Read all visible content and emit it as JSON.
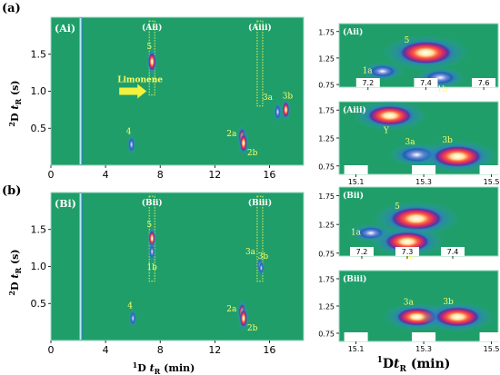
{
  "panel_labels": [
    "(a)",
    "(b)"
  ],
  "colors": {
    "background": "#1f9e6a",
    "frame": "#9fd9c0",
    "annotation": "#ffff66",
    "dotted_box": "#e9f25a"
  },
  "chart_data": [
    {
      "id": "Ai",
      "type": "heatmap",
      "label": "(Ai)",
      "xlabel": "",
      "ylabel": "2D tR (s)",
      "xlim": [
        0,
        18.5
      ],
      "ylim": [
        0,
        2.0
      ],
      "xticks": [
        0,
        4,
        8,
        12,
        16
      ],
      "yticks": [
        0.5,
        1.0,
        1.5
      ],
      "ytick_labels": [
        "0.5",
        "1.0",
        "1.5"
      ],
      "boxes": [
        {
          "name": "Aii",
          "label": "(Aii)",
          "x": [
            7.2,
            7.6
          ],
          "y": [
            0.95,
            1.95
          ]
        },
        {
          "name": "Aiii",
          "label": "(Aiii)",
          "x": [
            15.1,
            15.5
          ],
          "y": [
            0.8,
            1.95
          ]
        }
      ],
      "arrow": {
        "label": "Limonene",
        "x": 7.0,
        "y": 1.0
      },
      "spots": [
        {
          "label": "5",
          "x": 7.4,
          "y": 1.4,
          "intensity": 1.0
        },
        {
          "label": "4",
          "x": 5.9,
          "y": 0.28,
          "intensity": 0.5
        },
        {
          "label": "2a",
          "x": 14.0,
          "y": 0.38,
          "intensity": 0.8
        },
        {
          "label": "2b",
          "x": 14.1,
          "y": 0.3,
          "intensity": 0.9
        },
        {
          "label": "3a",
          "x": 16.6,
          "y": 0.72,
          "intensity": 0.5
        },
        {
          "label": "3b",
          "x": 17.2,
          "y": 0.75,
          "intensity": 0.7
        }
      ]
    },
    {
      "id": "Aii",
      "type": "heatmap",
      "label": "(Aii)",
      "xlim": [
        7.1,
        7.65
      ],
      "ylim": [
        0.7,
        1.9
      ],
      "xticks": [
        7.2,
        7.4,
        7.6
      ],
      "yticks": [
        0.75,
        1.25,
        1.75
      ],
      "ytick_labels": [
        "0.75",
        "1.25",
        "1.75"
      ],
      "spots": [
        {
          "label": "5",
          "x": 7.4,
          "y": 1.35,
          "intensity": 1.0
        },
        {
          "label": "1a",
          "x": 7.25,
          "y": 1.0,
          "intensity": 0.3
        },
        {
          "label": "1b",
          "x": 7.45,
          "y": 0.88,
          "intensity": 0.4
        }
      ]
    },
    {
      "id": "Aiii",
      "type": "heatmap",
      "label": "(Aiii)",
      "xlim": [
        15.05,
        15.52
      ],
      "ylim": [
        0.6,
        1.9
      ],
      "xticks": [
        15.1,
        15.3,
        15.5
      ],
      "yticks": [
        0.75,
        1.25,
        1.75
      ],
      "ytick_labels": [
        "0.75",
        "1.25",
        "1.75"
      ],
      "spots": [
        {
          "label": "Y",
          "x": 15.2,
          "y": 1.65,
          "intensity": 0.8
        },
        {
          "label": "3a",
          "x": 15.28,
          "y": 0.95,
          "intensity": 0.5
        },
        {
          "label": "3b",
          "x": 15.4,
          "y": 0.92,
          "intensity": 0.9
        }
      ]
    },
    {
      "id": "Bi",
      "type": "heatmap",
      "label": "(Bi)",
      "xlabel": "1D tR (min)",
      "ylabel": "2D tR (s)",
      "xlim": [
        0,
        18.5
      ],
      "ylim": [
        0,
        2.0
      ],
      "xticks": [
        0,
        4,
        8,
        12,
        16
      ],
      "yticks": [
        0.5,
        1.0,
        1.5
      ],
      "ytick_labels": [
        "0.5",
        "1.0",
        "1.5"
      ],
      "boxes": [
        {
          "name": "Bii",
          "label": "(Bii)",
          "x": [
            7.2,
            7.6
          ],
          "y": [
            0.8,
            1.95
          ]
        },
        {
          "name": "Biii",
          "label": "(Biii)",
          "x": [
            15.1,
            15.5
          ],
          "y": [
            0.8,
            1.95
          ]
        }
      ],
      "spots": [
        {
          "label": "5",
          "x": 7.4,
          "y": 1.38,
          "intensity": 0.7
        },
        {
          "label": "1b",
          "x": 7.4,
          "y": 1.2,
          "intensity": 0.4
        },
        {
          "label": "4",
          "x": 6.0,
          "y": 0.3,
          "intensity": 0.4
        },
        {
          "label": "2a",
          "x": 14.0,
          "y": 0.38,
          "intensity": 0.8
        },
        {
          "label": "2b",
          "x": 14.1,
          "y": 0.3,
          "intensity": 0.9
        },
        {
          "label": "3a",
          "x": 15.3,
          "y": 1.02,
          "intensity": 0.2
        },
        {
          "label": "3b",
          "x": 15.4,
          "y": 0.98,
          "intensity": 0.2
        }
      ]
    },
    {
      "id": "Bii",
      "type": "heatmap",
      "label": "(Bii)",
      "xlim": [
        7.15,
        7.5
      ],
      "ylim": [
        0.7,
        1.9
      ],
      "xticks": [
        7.2,
        7.3,
        7.4
      ],
      "yticks": [
        0.75,
        1.25,
        1.75
      ],
      "ytick_labels": [
        "0.75",
        "1.25",
        "1.75"
      ],
      "spots": [
        {
          "label": "5",
          "x": 7.32,
          "y": 1.35,
          "intensity": 1.0
        },
        {
          "label": "1a",
          "x": 7.22,
          "y": 1.1,
          "intensity": 0.3
        },
        {
          "label": "1b",
          "x": 7.3,
          "y": 0.95,
          "intensity": 0.8
        }
      ]
    },
    {
      "id": "Biii",
      "type": "heatmap",
      "label": "(Biii)",
      "xlabel": "1Dt R (min)",
      "xlim": [
        15.05,
        15.52
      ],
      "ylim": [
        0.6,
        1.9
      ],
      "xticks": [
        15.1,
        15.3,
        15.5
      ],
      "yticks": [
        0.75,
        1.25,
        1.75
      ],
      "ytick_labels": [
        "0.75",
        "1.25",
        "1.75"
      ],
      "spots": [
        {
          "label": "3a",
          "x": 15.28,
          "y": 1.05,
          "intensity": 0.7
        },
        {
          "label": "3b",
          "x": 15.4,
          "y": 1.05,
          "intensity": 0.8
        }
      ]
    }
  ]
}
